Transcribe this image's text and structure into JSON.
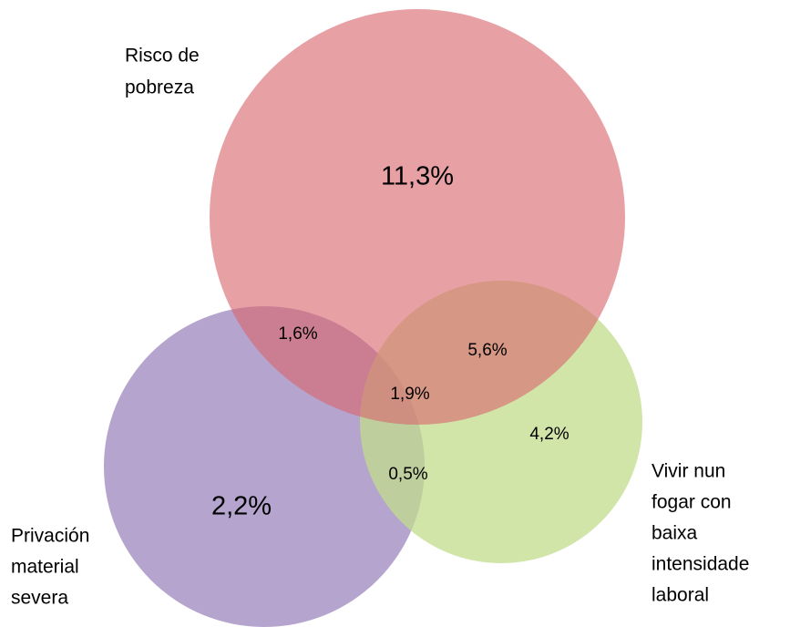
{
  "sets": [
    {
      "label": [
        "Risco de",
        "pobreza"
      ]
    },
    {
      "label": [
        "Privación",
        "material",
        "severa"
      ]
    },
    {
      "label": [
        "Vivir nun",
        "fogar con",
        "baixa",
        "intensidade",
        "laboral"
      ]
    }
  ],
  "regions": [
    {
      "label": "11,3%"
    },
    {
      "label": "2,2%"
    },
    {
      "label": "4,2%"
    },
    {
      "label": "1,6%"
    },
    {
      "label": "5,6%"
    },
    {
      "label": "0,5%"
    },
    {
      "label": "1,9%"
    }
  ]
}
